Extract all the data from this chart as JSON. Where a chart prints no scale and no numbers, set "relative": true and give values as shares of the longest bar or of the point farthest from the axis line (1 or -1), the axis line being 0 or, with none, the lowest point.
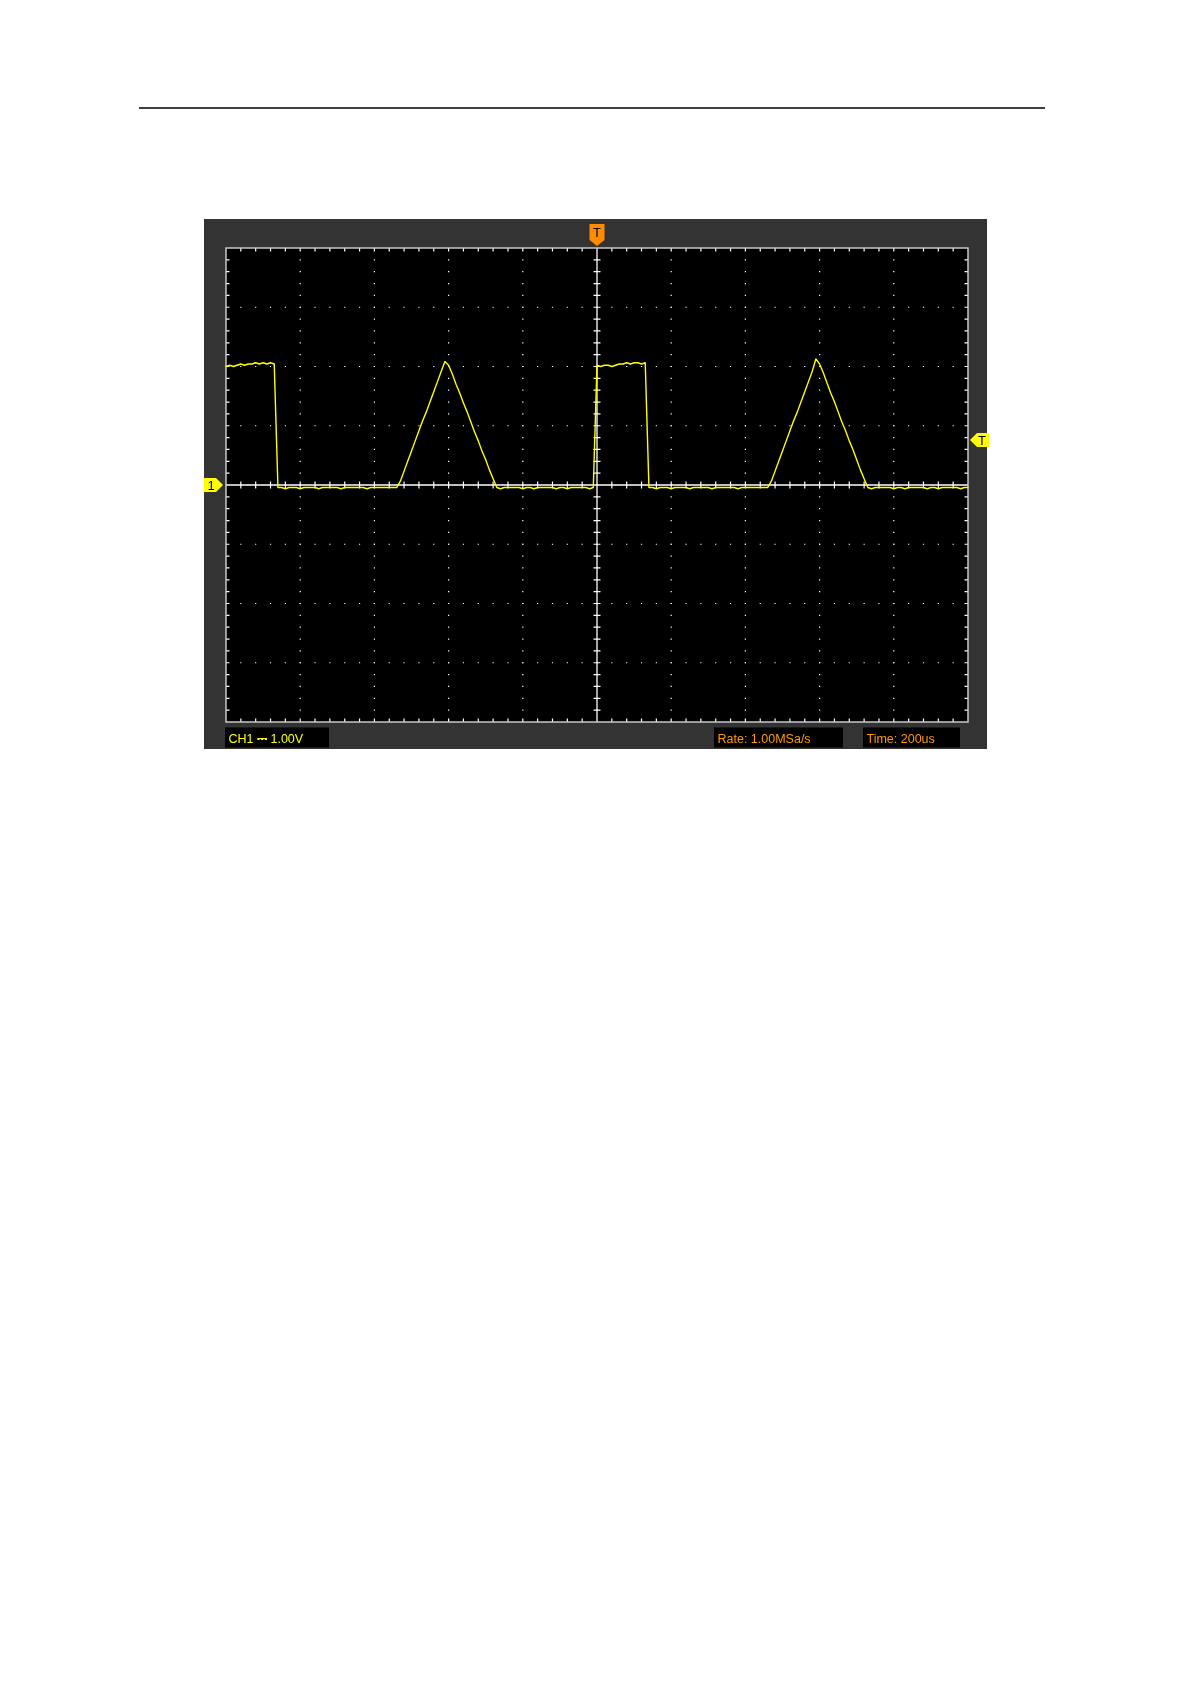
{
  "chart_data": {
    "type": "line",
    "relative": true,
    "categories": [
      null,
      null,
      null,
      null,
      null,
      null,
      null,
      null,
      null,
      null,
      null,
      null,
      null,
      null,
      null,
      null,
      null,
      null,
      null,
      null,
      null,
      null,
      null,
      null,
      null,
      null,
      null,
      null,
      null,
      null,
      null,
      null,
      null,
      null,
      null,
      null,
      null,
      null,
      null,
      null,
      null,
      null,
      null,
      null,
      null,
      null,
      null,
      null,
      null,
      null,
      null,
      null,
      null,
      null,
      null,
      null,
      null,
      null,
      null,
      null,
      null,
      null,
      null,
      null,
      null,
      null,
      null,
      null,
      null,
      null,
      null,
      null,
      null,
      null,
      null,
      null,
      null,
      null,
      null,
      null,
      null,
      null,
      null,
      null,
      null,
      null,
      null,
      null,
      null,
      null,
      null,
      null,
      null,
      null,
      null,
      null,
      null,
      null,
      null,
      null,
      null,
      null,
      null,
      null,
      null,
      null,
      null,
      null,
      null,
      null,
      null,
      null,
      null,
      null,
      null,
      null,
      null,
      null,
      null,
      null,
      null,
      null,
      null,
      null,
      null,
      null,
      null,
      null,
      null,
      null,
      null,
      null,
      null,
      null,
      null,
      null,
      null,
      null,
      null,
      null,
      null,
      null,
      null,
      null,
      null,
      null,
      null,
      null,
      null,
      null,
      null,
      null,
      null,
      null,
      null,
      null,
      null,
      null,
      null,
      null,
      null,
      null,
      null,
      null,
      null,
      null,
      null,
      null,
      null,
      null,
      null,
      null,
      null,
      null,
      null,
      null,
      null,
      null,
      null,
      null,
      null,
      null,
      null,
      null,
      null,
      null,
      null,
      null,
      null,
      null,
      null,
      null,
      null,
      null,
      null,
      null,
      null,
      null,
      null,
      null,
      null
    ],
    "series": [
      {
        "color": "#ffff00",
        "values": [
          0.94,
          0.95,
          0.94,
          0.95,
          0.96,
          0.95,
          0.96,
          0.96,
          0.97,
          0.96,
          0.97,
          0.96,
          0.97,
          0.96,
          -0.02,
          -0.02,
          -0.03,
          -0.02,
          -0.02,
          -0.02,
          -0.03,
          -0.02,
          -0.02,
          -0.02,
          -0.02,
          -0.03,
          -0.02,
          -0.02,
          -0.02,
          -0.02,
          -0.02,
          -0.03,
          -0.02,
          -0.02,
          -0.02,
          -0.02,
          -0.02,
          -0.02,
          -0.03,
          -0.02,
          -0.02,
          -0.02,
          -0.02,
          -0.02,
          -0.02,
          -0.02,
          -0.02,
          0.03,
          0.11,
          0.19,
          0.27,
          0.35,
          0.43,
          0.51,
          0.58,
          0.66,
          0.74,
          0.82,
          0.9,
          0.98,
          0.95,
          0.88,
          0.8,
          0.73,
          0.65,
          0.58,
          0.5,
          0.42,
          0.35,
          0.27,
          0.2,
          0.12,
          0.05,
          -0.02,
          -0.03,
          -0.02,
          -0.02,
          -0.02,
          -0.02,
          -0.02,
          -0.03,
          -0.02,
          -0.02,
          -0.03,
          -0.02,
          -0.02,
          -0.02,
          -0.02,
          -0.02,
          -0.03,
          -0.02,
          -0.02,
          -0.03,
          -0.02,
          -0.02,
          -0.02,
          -0.02,
          -0.02,
          -0.03,
          -0.02,
          0.95,
          0.94,
          0.95,
          0.95,
          0.94,
          0.95,
          0.96,
          0.96,
          0.97,
          0.96,
          0.97,
          0.97,
          0.96,
          0.97,
          -0.02,
          -0.02,
          -0.03,
          -0.02,
          -0.02,
          -0.02,
          -0.03,
          -0.02,
          -0.02,
          -0.02,
          -0.02,
          -0.03,
          -0.02,
          -0.02,
          -0.02,
          -0.02,
          -0.02,
          -0.03,
          -0.02,
          -0.02,
          -0.02,
          -0.02,
          -0.02,
          -0.02,
          -0.03,
          -0.02,
          -0.02,
          -0.02,
          -0.02,
          -0.02,
          -0.02,
          -0.02,
          -0.02,
          0.03,
          0.11,
          0.19,
          0.27,
          0.35,
          0.43,
          0.51,
          0.58,
          0.66,
          0.74,
          0.82,
          0.9,
          1.0,
          0.96,
          0.89,
          0.81,
          0.73,
          0.66,
          0.58,
          0.5,
          0.43,
          0.35,
          0.28,
          0.2,
          0.12,
          0.05,
          -0.02,
          -0.03,
          -0.02,
          -0.02,
          -0.02,
          -0.02,
          -0.02,
          -0.03,
          -0.02,
          -0.02,
          -0.03,
          -0.02,
          -0.02,
          -0.02,
          -0.02,
          -0.02,
          -0.03,
          -0.02,
          -0.02,
          -0.03,
          -0.02,
          -0.02,
          -0.02,
          -0.02,
          -0.02,
          -0.03,
          -0.02,
          -0.02
        ]
      }
    ],
    "grid": true,
    "annotations": [
      "T",
      "T",
      "1",
      "CH1 ⎓ 1.00V",
      "Rate: 1.00MSa/s",
      "Time: 200us"
    ]
  }
}
